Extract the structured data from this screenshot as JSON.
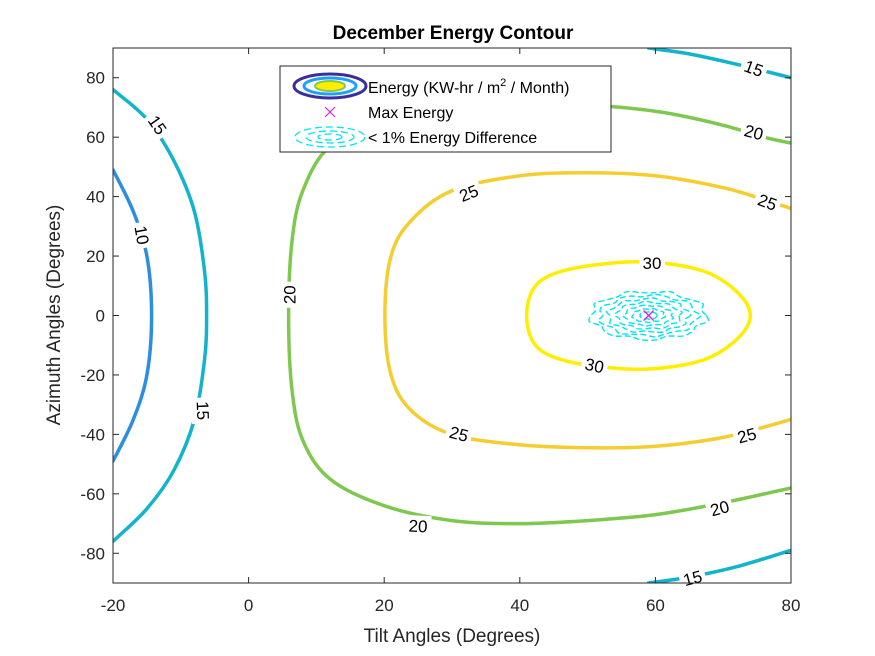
{
  "chart_data": {
    "type": "contour",
    "title": "December Energy Contour",
    "xlabel": "Tilt Angles (Degrees)",
    "ylabel": "Azimuth Angles (Degrees)",
    "xlim": [
      -20,
      80
    ],
    "ylim": [
      -90,
      90
    ],
    "xticks": [
      -20,
      0,
      20,
      40,
      60,
      80
    ],
    "yticks": [
      -80,
      -60,
      -40,
      -20,
      0,
      20,
      40,
      60,
      80
    ],
    "grid": false,
    "legend_position": "top-center",
    "legend": {
      "energy_label_pre": "Energy (KW-hr / m",
      "energy_label_sup": "2",
      "energy_label_post": " / Month)",
      "max_label": "Max Energy",
      "diff_label": "< 1% Energy Difference"
    },
    "max_energy_point": {
      "x": 59,
      "y": 0,
      "color": "#e020e0"
    },
    "one_percent_region": {
      "center": [
        59,
        0
      ],
      "x_halfwidth": 8.5,
      "y_halfheight": 8,
      "color": "#00e5ee"
    },
    "levels": [
      {
        "level": 10,
        "color": "#2b8ee0",
        "label": "10",
        "points": [
          [
            -20,
            49
          ],
          [
            -17,
            35
          ],
          [
            -15,
            20
          ],
          [
            -14.3,
            0
          ],
          [
            -15,
            -20
          ],
          [
            -17,
            -35
          ],
          [
            -20,
            -49
          ]
        ],
        "labels": [
          {
            "x": -15.8,
            "y": 27,
            "rot": 80
          }
        ]
      },
      {
        "level": 15,
        "color": "#12b4cc",
        "label": "15",
        "points": [
          [
            -20,
            76
          ],
          [
            -15,
            66
          ],
          [
            -11,
            52
          ],
          [
            -8,
            35
          ],
          [
            -6.5,
            15
          ],
          [
            -6.2,
            0
          ],
          [
            -6.5,
            -15
          ],
          [
            -8,
            -35
          ],
          [
            -11,
            -52
          ],
          [
            -15,
            -65
          ],
          [
            -20,
            -76
          ]
        ],
        "labels": [
          {
            "x": -13.5,
            "y": 64,
            "rot": 55
          },
          {
            "x": -6.8,
            "y": -32,
            "rot": 88
          }
        ]
      },
      {
        "level": 15,
        "color": "#12b4cc",
        "label": "15",
        "points": [
          [
            59,
            90
          ],
          [
            65,
            88
          ],
          [
            72,
            84.5
          ],
          [
            80,
            80
          ]
        ],
        "labels": [
          {
            "x": 74.5,
            "y": 83,
            "rot": 20
          }
        ]
      },
      {
        "level": 15,
        "color": "#12b4cc",
        "label": "15",
        "points": [
          [
            59,
            -90
          ],
          [
            65,
            -88
          ],
          [
            72,
            -84.5
          ],
          [
            80,
            -79
          ]
        ],
        "labels": [
          {
            "x": 65.5,
            "y": -88.5,
            "rot": -15
          }
        ]
      },
      {
        "level": 20,
        "color": "#7ec850",
        "label": "20",
        "points": [
          [
            30,
            70
          ],
          [
            20,
            66
          ],
          [
            12,
            57
          ],
          [
            8,
            42
          ],
          [
            6.4,
            25
          ],
          [
            5.9,
            0
          ],
          [
            6.4,
            -25
          ],
          [
            8,
            -42
          ],
          [
            12,
            -55
          ],
          [
            20,
            -64
          ],
          [
            30,
            -69
          ],
          [
            40,
            -70
          ],
          [
            50,
            -69
          ],
          [
            60,
            -67
          ],
          [
            70,
            -63
          ],
          [
            80,
            -58
          ]
        ],
        "labels": [
          {
            "x": 6.1,
            "y": 7,
            "rot": -90
          },
          {
            "x": 25,
            "y": -71,
            "rot": 3
          },
          {
            "x": 69.5,
            "y": -65,
            "rot": -15
          }
        ]
      },
      {
        "level": 20,
        "color": "#7ec850",
        "label": "20",
        "points": [
          [
            48,
            71
          ],
          [
            55,
            70
          ],
          [
            62,
            68
          ],
          [
            70,
            64
          ],
          [
            76,
            60
          ],
          [
            80,
            58
          ]
        ],
        "labels": [
          {
            "x": 74.5,
            "y": 61.5,
            "rot": 15
          }
        ]
      },
      {
        "level": 25,
        "color": "#f5cd2f",
        "label": "25",
        "points": [
          [
            80,
            36
          ],
          [
            76,
            39
          ],
          [
            70,
            43
          ],
          [
            60,
            47
          ],
          [
            50,
            48
          ],
          [
            40,
            47
          ],
          [
            30,
            42
          ],
          [
            24,
            32
          ],
          [
            21,
            20
          ],
          [
            20.1,
            0
          ],
          [
            21,
            -20
          ],
          [
            24,
            -32
          ],
          [
            30,
            -40
          ],
          [
            40,
            -43.5
          ],
          [
            50,
            -44.5
          ],
          [
            60,
            -44
          ],
          [
            70,
            -41
          ],
          [
            80,
            -35
          ]
        ],
        "labels": [
          {
            "x": 32.5,
            "y": 41,
            "rot": -22
          },
          {
            "x": 76.5,
            "y": 38,
            "rot": 20
          },
          {
            "x": 31,
            "y": -40,
            "rot": 15
          },
          {
            "x": 73.5,
            "y": -40.5,
            "rot": -15
          }
        ]
      },
      {
        "level": 30,
        "color": "#ffee00",
        "label": "30",
        "closed": true,
        "points": [
          [
            74,
            0
          ],
          [
            72,
            8
          ],
          [
            67,
            15
          ],
          [
            59,
            18
          ],
          [
            51,
            17
          ],
          [
            45,
            14
          ],
          [
            42,
            9
          ],
          [
            41,
            0
          ],
          [
            42,
            -9
          ],
          [
            45,
            -14
          ],
          [
            51,
            -17
          ],
          [
            59,
            -18
          ],
          [
            67,
            -15
          ],
          [
            72,
            -8
          ]
        ],
        "labels": [
          {
            "x": 59.5,
            "y": 17.5,
            "rot": 0
          },
          {
            "x": 51,
            "y": -17,
            "rot": 12
          }
        ]
      }
    ]
  }
}
